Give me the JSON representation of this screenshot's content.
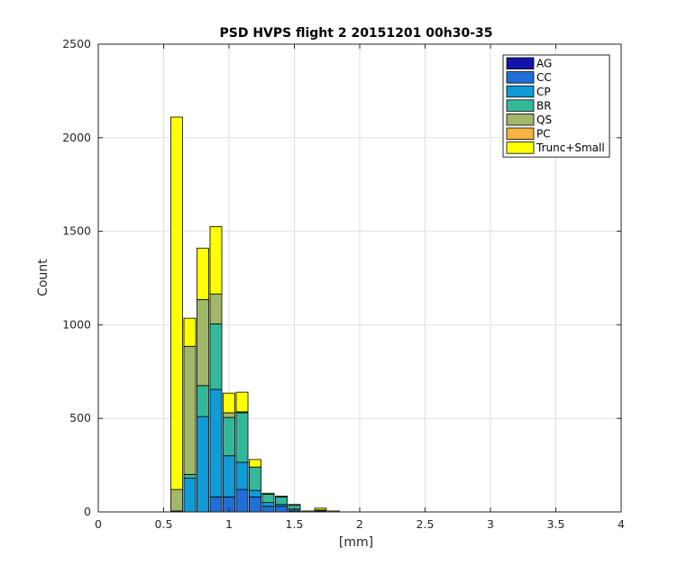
{
  "chart_data": {
    "type": "bar",
    "stacked": true,
    "title": "PSD HVPS  flight 2 20151201 00h30-35",
    "xlabel": "[mm]",
    "ylabel": "Count",
    "xlim": [
      0,
      4
    ],
    "ylim": [
      0,
      2500
    ],
    "xticks": [
      "0",
      "0.5",
      "1",
      "1.5",
      "2",
      "2.5",
      "3",
      "3.5",
      "4"
    ],
    "yticks": [
      "0",
      "500",
      "1000",
      "1500",
      "2000",
      "2500"
    ],
    "grid": true,
    "legend_position": "top-right",
    "bin_width": 0.1,
    "x": [
      0.6,
      0.7,
      0.8,
      0.9,
      1.0,
      1.1,
      1.2,
      1.3,
      1.4,
      1.5,
      1.6,
      1.7,
      1.8
    ],
    "series": [
      {
        "name": "AG",
        "color": "#1414a8",
        "values": [
          0,
          0,
          0,
          0,
          0,
          0,
          0,
          0,
          0,
          0,
          0,
          0,
          0
        ]
      },
      {
        "name": "CC",
        "color": "#1f6fd6",
        "values": [
          5,
          0,
          0,
          80,
          80,
          120,
          80,
          30,
          30,
          5,
          0,
          5,
          0
        ]
      },
      {
        "name": "CP",
        "color": "#109bd6",
        "values": [
          0,
          180,
          510,
          575,
          220,
          145,
          35,
          20,
          10,
          10,
          0,
          0,
          0
        ]
      },
      {
        "name": "BR",
        "color": "#35b89a",
        "values": [
          0,
          20,
          165,
          350,
          205,
          265,
          125,
          45,
          40,
          20,
          0,
          5,
          0
        ]
      },
      {
        "name": "QS",
        "color": "#a1b76a",
        "values": [
          115,
          685,
          460,
          160,
          25,
          5,
          0,
          0,
          0,
          0,
          0,
          0,
          0
        ]
      },
      {
        "name": "PC",
        "color": "#f7b440",
        "values": [
          0,
          0,
          0,
          0,
          0,
          0,
          0,
          0,
          0,
          0,
          0,
          0,
          0
        ]
      },
      {
        "name": "Trunc+Small",
        "color": "#ffff00",
        "values": [
          1990,
          150,
          275,
          360,
          105,
          105,
          40,
          5,
          5,
          5,
          5,
          10,
          5
        ]
      }
    ]
  }
}
